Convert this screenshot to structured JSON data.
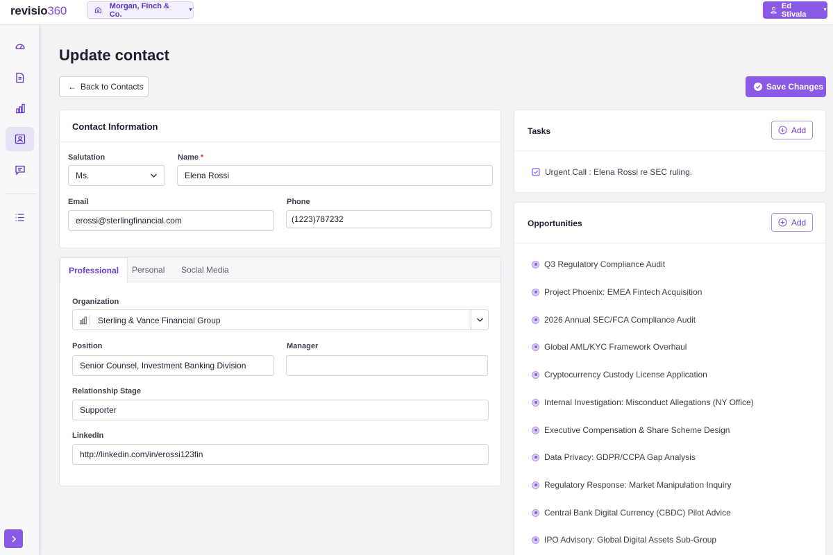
{
  "app": {
    "logo_main": "revisio",
    "logo_num": "360",
    "org_name": "Morgan, Finch & Co.",
    "user_name": "Ed Stivala"
  },
  "sidebar": {
    "items": [
      {
        "icon": "dashboard-icon"
      },
      {
        "icon": "document-icon"
      },
      {
        "icon": "building-chart-icon"
      },
      {
        "icon": "contacts-icon",
        "active": true
      },
      {
        "icon": "message-icon"
      },
      {
        "icon": "list-icon"
      }
    ]
  },
  "page": {
    "title": "Update contact",
    "back_label": "Back to Contacts",
    "save_label": "Save Changes"
  },
  "contact": {
    "title": "Contact Information",
    "salutation_label": "Salutation",
    "salutation_value": "Ms.",
    "name_label": "Name",
    "name_required": "*",
    "name_value": "Elena Rossi",
    "email_label": "Email",
    "email_value": "erossi@sterlingfinancial.com",
    "phone_label": "Phone",
    "phone_value": "(1223)787232"
  },
  "tabs": {
    "items": [
      "Professional",
      "Personal",
      "Social Media"
    ],
    "active": "Professional"
  },
  "professional": {
    "org_label": "Organization",
    "org_value": "Sterling & Vance Financial Group",
    "position_label": "Position",
    "position_value": "Senior Counsel, Investment Banking Division",
    "manager_label": "Manager",
    "manager_value": "",
    "stage_label": "Relationship Stage",
    "stage_value": "Supporter",
    "linkedin_label": "LinkedIn",
    "linkedin_value": "http://linkedin.com/in/erossi123fin"
  },
  "tasks": {
    "title": "Tasks",
    "add_label": "Add",
    "items": [
      "Urgent Call : Elena Rossi re SEC ruling."
    ]
  },
  "opportunities": {
    "title": "Opportunities",
    "add_label": "Add",
    "items": [
      "Q3 Regulatory Compliance Audit",
      "Project Phoenix: EMEA Fintech Acquisition",
      "2026 Annual SEC/FCA Compliance Audit",
      "Global AML/KYC Framework Overhaul",
      "Cryptocurrency Custody License Application",
      "Internal Investigation: Misconduct Allegations (NY Office)",
      "Executive Compensation & Share Scheme Design",
      "Data Privacy: GDPR/CCPA Gap Analysis",
      "Regulatory Response: Market Manipulation Inquiry",
      "Central Bank Digital Currency (CBDC) Pilot Advice",
      "IPO Advisory: Global Digital Assets Sub-Group"
    ]
  },
  "colors": {
    "accent": "#8a5ae6",
    "accent_dark": "#5a33c4",
    "background": "#f3f3f5"
  }
}
